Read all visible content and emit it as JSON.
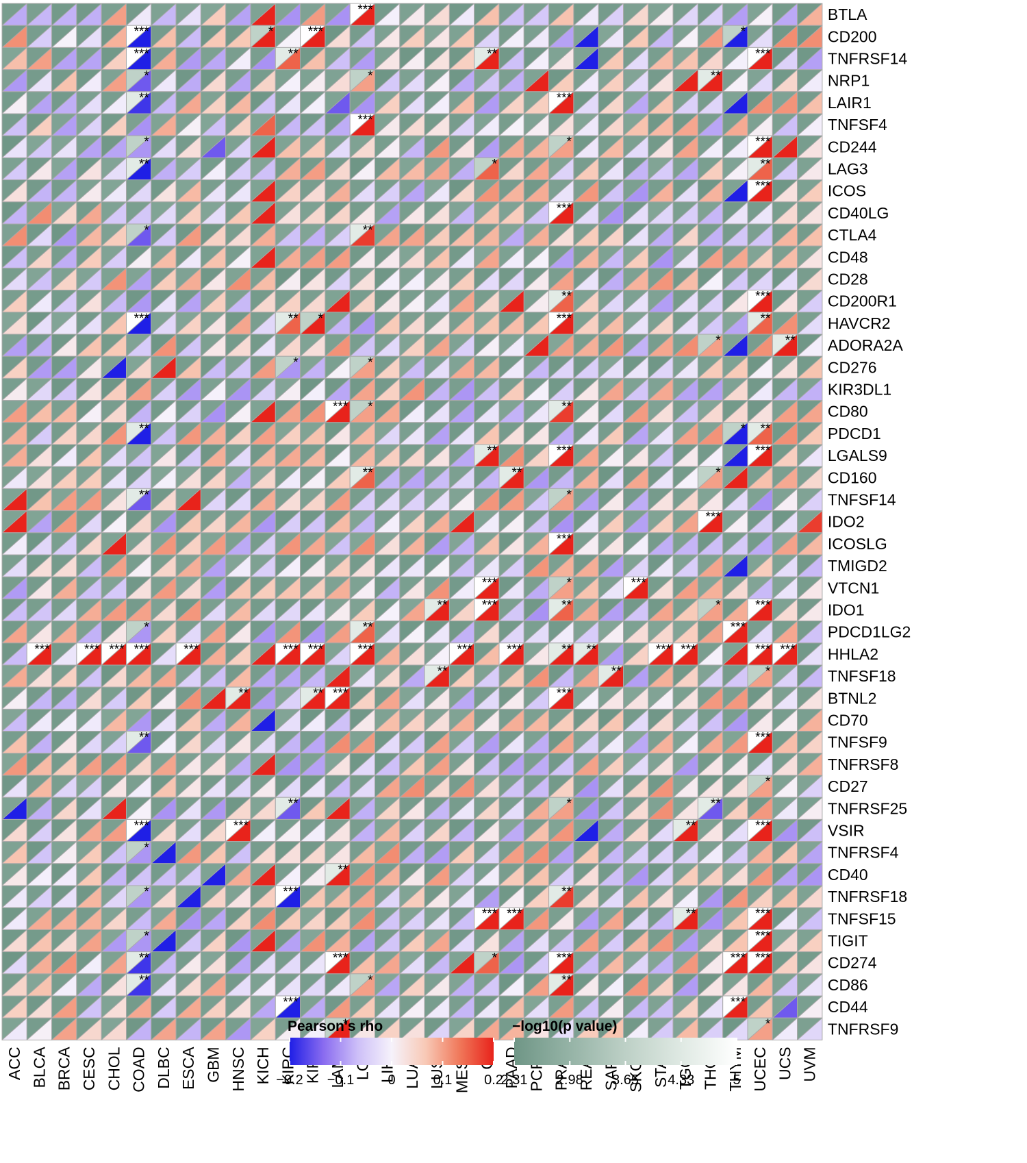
{
  "chart_data": {
    "type": "heatmap",
    "cancers": [
      "ACC",
      "BLCA",
      "BRCA",
      "CESC",
      "CHOL",
      "COAD",
      "DLBC",
      "ESCA",
      "GBM",
      "HNSC",
      "KICH",
      "KIRC",
      "KIRP",
      "LAML",
      "LGG",
      "LIHC",
      "LUAD",
      "LUSC",
      "MESO",
      "OV",
      "PAAD",
      "PCPG",
      "PRAD",
      "READ",
      "SARC",
      "SKCM",
      "STAD",
      "TGCT",
      "THCA",
      "THYM",
      "UCEC",
      "UCS",
      "UVM"
    ],
    "genes": [
      "BTLA",
      "CD200",
      "TNFRSF14",
      "NRP1",
      "LAIR1",
      "TNFSF4",
      "CD244",
      "LAG3",
      "ICOS",
      "CD40LG",
      "CTLA4",
      "CD48",
      "CD28",
      "CD200R1",
      "HAVCR2",
      "ADORA2A",
      "CD276",
      "KIR3DL1",
      "CD80",
      "PDCD1",
      "LGALS9",
      "CD160",
      "TNFSF14",
      "IDO2",
      "ICOSLG",
      "TMIGD2",
      "VTCN1",
      "IDO1",
      "PDCD1LG2",
      "HHLA2",
      "TNFSF18",
      "BTNL2",
      "CD70",
      "TNFSF9",
      "TNFRSF8",
      "CD27",
      "TNFRSF25",
      "VSIR",
      "TNFRSF4",
      "CD40",
      "TNFRSF18",
      "TNFSF15",
      "TIGIT",
      "CD274",
      "CD86",
      "CD44",
      "TNFRSF9"
    ],
    "rho_colors": [
      "#1f1fe6",
      "#8a6cf0",
      "#cdbff8",
      "#f6f2fb",
      "#f8c9b6",
      "#f0785a",
      "#e8231b"
    ],
    "p_colors": [
      "#6f9686",
      "#95b3a6",
      "#bdd0c6",
      "#dfe9e3",
      "#ffffff"
    ],
    "strong": [
      {
        "gene": "BTLA",
        "cancer": "KICH",
        "rho": 0.2
      },
      {
        "gene": "BTLA",
        "cancer": "LGG",
        "rho": 0.2,
        "sig": "***"
      },
      {
        "gene": "CD200",
        "cancer": "COAD",
        "rho": -0.2,
        "sig": "***"
      },
      {
        "gene": "CD200",
        "cancer": "KICH",
        "rho": 0.2,
        "sig": "*"
      },
      {
        "gene": "CD200",
        "cancer": "KIRP",
        "rho": 0.2,
        "sig": "***"
      },
      {
        "gene": "CD200",
        "cancer": "READ",
        "rho": -0.2
      },
      {
        "gene": "CD200",
        "cancer": "THYM",
        "rho": -0.2,
        "sig": "*"
      },
      {
        "gene": "TNFRSF14",
        "cancer": "COAD",
        "rho": -0.2,
        "sig": "***"
      },
      {
        "gene": "TNFRSF14",
        "cancer": "KIRC",
        "rho": 0.15,
        "sig": "**"
      },
      {
        "gene": "TNFRSF14",
        "cancer": "OV",
        "rho": 0.2,
        "sig": "**"
      },
      {
        "gene": "TNFRSF14",
        "cancer": "READ",
        "rho": -0.2
      },
      {
        "gene": "TNFRSF14",
        "cancer": "UCEC",
        "rho": 0.2,
        "sig": "***"
      },
      {
        "gene": "NRP1",
        "cancer": "COAD",
        "rho": -0.15,
        "sig": "*"
      },
      {
        "gene": "NRP1",
        "cancer": "LGG",
        "rho": 0.1,
        "sig": "*"
      },
      {
        "gene": "NRP1",
        "cancer": "PCPG",
        "rho": 0.2
      },
      {
        "gene": "NRP1",
        "cancer": "TGCT",
        "rho": 0.2
      },
      {
        "gene": "NRP1",
        "cancer": "THCA",
        "rho": 0.2,
        "sig": "**"
      },
      {
        "gene": "LAIR1",
        "cancer": "COAD",
        "rho": -0.18,
        "sig": "**"
      },
      {
        "gene": "LAIR1",
        "cancer": "LAML",
        "rho": -0.15
      },
      {
        "gene": "LAIR1",
        "cancer": "PRAD",
        "rho": 0.2,
        "sig": "***"
      },
      {
        "gene": "LAIR1",
        "cancer": "THYM",
        "rho": -0.2
      },
      {
        "gene": "TNFSF4",
        "cancer": "KICH",
        "rho": 0.15
      },
      {
        "gene": "TNFSF4",
        "cancer": "LGG",
        "rho": 0.2,
        "sig": "***"
      },
      {
        "gene": "CD244",
        "cancer": "COAD",
        "rho": -0.1,
        "sig": "*"
      },
      {
        "gene": "CD244",
        "cancer": "GBM",
        "rho": -0.15
      },
      {
        "gene": "CD244",
        "cancer": "KICH",
        "rho": 0.2
      },
      {
        "gene": "CD244",
        "cancer": "PRAD",
        "rho": 0.1,
        "sig": "*"
      },
      {
        "gene": "CD244",
        "cancer": "UCEC",
        "rho": 0.2,
        "sig": "***"
      },
      {
        "gene": "CD244",
        "cancer": "UCS",
        "rho": 0.2
      },
      {
        "gene": "LAG3",
        "cancer": "COAD",
        "rho": -0.2,
        "sig": "**"
      },
      {
        "gene": "LAG3",
        "cancer": "OV",
        "rho": 0.15,
        "sig": "*"
      },
      {
        "gene": "LAG3",
        "cancer": "UCEC",
        "rho": 0.15,
        "sig": "**"
      },
      {
        "gene": "ICOS",
        "cancer": "KICH",
        "rho": 0.2
      },
      {
        "gene": "ICOS",
        "cancer": "THYM",
        "rho": -0.2
      },
      {
        "gene": "ICOS",
        "cancer": "UCEC",
        "rho": 0.2,
        "sig": "***"
      },
      {
        "gene": "CD40LG",
        "cancer": "KICH",
        "rho": 0.2
      },
      {
        "gene": "CD40LG",
        "cancer": "PRAD",
        "rho": 0.2,
        "sig": "***"
      },
      {
        "gene": "CTLA4",
        "cancer": "COAD",
        "rho": -0.15,
        "sig": "*"
      },
      {
        "gene": "CTLA4",
        "cancer": "LGG",
        "rho": 0.18,
        "sig": "**"
      },
      {
        "gene": "CD48",
        "cancer": "KICH",
        "rho": 0.2
      },
      {
        "gene": "CD200R1",
        "cancer": "LAML",
        "rho": 0.2
      },
      {
        "gene": "CD200R1",
        "cancer": "PAAD",
        "rho": 0.2
      },
      {
        "gene": "CD200R1",
        "cancer": "PRAD",
        "rho": 0.15,
        "sig": "**"
      },
      {
        "gene": "CD200R1",
        "cancer": "UCEC",
        "rho": 0.2,
        "sig": "***"
      },
      {
        "gene": "HAVCR2",
        "cancer": "COAD",
        "rho": -0.2,
        "sig": "***"
      },
      {
        "gene": "HAVCR2",
        "cancer": "KIRC",
        "rho": 0.15,
        "sig": "**"
      },
      {
        "gene": "HAVCR2",
        "cancer": "KIRP",
        "rho": 0.2,
        "sig": "*"
      },
      {
        "gene": "HAVCR2",
        "cancer": "PRAD",
        "rho": 0.2,
        "sig": "***"
      },
      {
        "gene": "HAVCR2",
        "cancer": "UCEC",
        "rho": 0.15,
        "sig": "**"
      },
      {
        "gene": "ADORA2A",
        "cancer": "PCPG",
        "rho": 0.2
      },
      {
        "gene": "ADORA2A",
        "cancer": "THCA",
        "rho": 0.1,
        "sig": "*"
      },
      {
        "gene": "ADORA2A",
        "cancer": "THYM",
        "rho": -0.2
      },
      {
        "gene": "ADORA2A",
        "cancer": "UCS",
        "rho": 0.2,
        "sig": "**"
      },
      {
        "gene": "CD276",
        "cancer": "CHOL",
        "rho": -0.2
      },
      {
        "gene": "CD276",
        "cancer": "DLBC",
        "rho": 0.2
      },
      {
        "gene": "CD276",
        "cancer": "KIRC",
        "rho": -0.1,
        "sig": "*"
      },
      {
        "gene": "CD276",
        "cancer": "LGG",
        "rho": 0.1,
        "sig": "*"
      },
      {
        "gene": "CD80",
        "cancer": "KICH",
        "rho": 0.2
      },
      {
        "gene": "CD80",
        "cancer": "LAML",
        "rho": 0.2,
        "sig": "***"
      },
      {
        "gene": "CD80",
        "cancer": "LGG",
        "rho": 0.1,
        "sig": "*"
      },
      {
        "gene": "CD80",
        "cancer": "PRAD",
        "rho": 0.18,
        "sig": "**"
      },
      {
        "gene": "PDCD1",
        "cancer": "COAD",
        "rho": -0.2,
        "sig": "**"
      },
      {
        "gene": "PDCD1",
        "cancer": "THYM",
        "rho": -0.2,
        "sig": "*"
      },
      {
        "gene": "PDCD1",
        "cancer": "UCEC",
        "rho": 0.15,
        "sig": "**"
      },
      {
        "gene": "LGALS9",
        "cancer": "OV",
        "rho": 0.2,
        "sig": "**"
      },
      {
        "gene": "LGALS9",
        "cancer": "PRAD",
        "rho": 0.2,
        "sig": "***"
      },
      {
        "gene": "LGALS9",
        "cancer": "THYM",
        "rho": -0.2
      },
      {
        "gene": "LGALS9",
        "cancer": "UCEC",
        "rho": 0.2,
        "sig": "***"
      },
      {
        "gene": "CD160",
        "cancer": "LGG",
        "rho": 0.15,
        "sig": "**"
      },
      {
        "gene": "CD160",
        "cancer": "PAAD",
        "rho": 0.2,
        "sig": "**"
      },
      {
        "gene": "CD160",
        "cancer": "THCA",
        "rho": 0.1,
        "sig": "*"
      },
      {
        "gene": "CD160",
        "cancer": "THYM",
        "rho": 0.2
      },
      {
        "gene": "TNFSF14",
        "cancer": "ACC",
        "rho": 0.2
      },
      {
        "gene": "TNFSF14",
        "cancer": "COAD",
        "rho": -0.15,
        "sig": "**"
      },
      {
        "gene": "TNFSF14",
        "cancer": "ESCA",
        "rho": 0.2
      },
      {
        "gene": "TNFSF14",
        "cancer": "PRAD",
        "rho": 0.1,
        "sig": "*"
      },
      {
        "gene": "IDO2",
        "cancer": "ACC",
        "rho": 0.2
      },
      {
        "gene": "IDO2",
        "cancer": "MESO",
        "rho": 0.2
      },
      {
        "gene": "IDO2",
        "cancer": "THCA",
        "rho": 0.2,
        "sig": "***"
      },
      {
        "gene": "IDO2",
        "cancer": "UVM",
        "rho": 0.18
      },
      {
        "gene": "ICOSLG",
        "cancer": "CHOL",
        "rho": 0.2
      },
      {
        "gene": "ICOSLG",
        "cancer": "PRAD",
        "rho": 0.2,
        "sig": "***"
      },
      {
        "gene": "TMIGD2",
        "cancer": "THYM",
        "rho": -0.2
      },
      {
        "gene": "VTCN1",
        "cancer": "OV",
        "rho": 0.2,
        "sig": "***"
      },
      {
        "gene": "VTCN1",
        "cancer": "PRAD",
        "rho": 0.1,
        "sig": "*"
      },
      {
        "gene": "VTCN1",
        "cancer": "SKCM",
        "rho": 0.2,
        "sig": "***"
      },
      {
        "gene": "IDO1",
        "cancer": "LUSC",
        "rho": 0.2,
        "sig": "**"
      },
      {
        "gene": "IDO1",
        "cancer": "OV",
        "rho": 0.2,
        "sig": "***"
      },
      {
        "gene": "IDO1",
        "cancer": "PRAD",
        "rho": 0.15,
        "sig": "**"
      },
      {
        "gene": "IDO1",
        "cancer": "THCA",
        "rho": 0.1,
        "sig": "*"
      },
      {
        "gene": "IDO1",
        "cancer": "UCEC",
        "rho": 0.2,
        "sig": "***"
      },
      {
        "gene": "PDCD1LG2",
        "cancer": "COAD",
        "rho": -0.1,
        "sig": "*"
      },
      {
        "gene": "PDCD1LG2",
        "cancer": "LGG",
        "rho": 0.15,
        "sig": "**"
      },
      {
        "gene": "PDCD1LG2",
        "cancer": "THYM",
        "rho": 0.2,
        "sig": "***"
      },
      {
        "gene": "HHLA2",
        "cancer": "BLCA",
        "rho": 0.2,
        "sig": "***"
      },
      {
        "gene": "HHLA2",
        "cancer": "CESC",
        "rho": 0.2,
        "sig": "***"
      },
      {
        "gene": "HHLA2",
        "cancer": "CHOL",
        "rho": 0.2,
        "sig": "***"
      },
      {
        "gene": "HHLA2",
        "cancer": "COAD",
        "rho": 0.2,
        "sig": "***"
      },
      {
        "gene": "HHLA2",
        "cancer": "ESCA",
        "rho": 0.2,
        "sig": "***"
      },
      {
        "gene": "HHLA2",
        "cancer": "KICH",
        "rho": 0.2
      },
      {
        "gene": "HHLA2",
        "cancer": "KIRC",
        "rho": 0.2,
        "sig": "***"
      },
      {
        "gene": "HHLA2",
        "cancer": "KIRP",
        "rho": 0.2,
        "sig": "***"
      },
      {
        "gene": "HHLA2",
        "cancer": "LGG",
        "rho": 0.2,
        "sig": "***"
      },
      {
        "gene": "HHLA2",
        "cancer": "MESO",
        "rho": 0.2,
        "sig": "***"
      },
      {
        "gene": "HHLA2",
        "cancer": "PAAD",
        "rho": 0.2,
        "sig": "***"
      },
      {
        "gene": "HHLA2",
        "cancer": "PRAD",
        "rho": 0.2,
        "sig": "**"
      },
      {
        "gene": "HHLA2",
        "cancer": "READ",
        "rho": 0.2,
        "sig": "**"
      },
      {
        "gene": "HHLA2",
        "cancer": "STAD",
        "rho": 0.2,
        "sig": "***"
      },
      {
        "gene": "HHLA2",
        "cancer": "TGCT",
        "rho": 0.2,
        "sig": "***"
      },
      {
        "gene": "HHLA2",
        "cancer": "THYM",
        "rho": 0.2
      },
      {
        "gene": "HHLA2",
        "cancer": "UCEC",
        "rho": 0.2,
        "sig": "***"
      },
      {
        "gene": "HHLA2",
        "cancer": "UCS",
        "rho": 0.2,
        "sig": "***"
      },
      {
        "gene": "TNFSF18",
        "cancer": "LAML",
        "rho": 0.2
      },
      {
        "gene": "TNFSF18",
        "cancer": "LUSC",
        "rho": 0.2,
        "sig": "**"
      },
      {
        "gene": "TNFSF18",
        "cancer": "SARC",
        "rho": 0.2,
        "sig": "**"
      },
      {
        "gene": "TNFSF18",
        "cancer": "UCEC",
        "rho": 0.1,
        "sig": "*"
      },
      {
        "gene": "BTNL2",
        "cancer": "GBM",
        "rho": 0.2
      },
      {
        "gene": "BTNL2",
        "cancer": "HNSC",
        "rho": 0.2,
        "sig": "**"
      },
      {
        "gene": "BTNL2",
        "cancer": "KIRP",
        "rho": 0.2,
        "sig": "**"
      },
      {
        "gene": "BTNL2",
        "cancer": "LAML",
        "rho": 0.2,
        "sig": "***"
      },
      {
        "gene": "BTNL2",
        "cancer": "PRAD",
        "rho": 0.2,
        "sig": "***"
      },
      {
        "gene": "CD70",
        "cancer": "KICH",
        "rho": -0.2
      },
      {
        "gene": "TNFSF9",
        "cancer": "COAD",
        "rho": -0.15,
        "sig": "**"
      },
      {
        "gene": "TNFSF9",
        "cancer": "UCEC",
        "rho": 0.2,
        "sig": "***"
      },
      {
        "gene": "TNFRSF8",
        "cancer": "KICH",
        "rho": 0.2
      },
      {
        "gene": "CD27",
        "cancer": "UCEC",
        "rho": 0.1,
        "sig": "*"
      },
      {
        "gene": "TNFRSF25",
        "cancer": "ACC",
        "rho": -0.2
      },
      {
        "gene": "TNFRSF25",
        "cancer": "CHOL",
        "rho": 0.2
      },
      {
        "gene": "TNFRSF25",
        "cancer": "KIRC",
        "rho": -0.15,
        "sig": "**"
      },
      {
        "gene": "TNFRSF25",
        "cancer": "LAML",
        "rho": 0.2
      },
      {
        "gene": "TNFRSF25",
        "cancer": "PRAD",
        "rho": 0.1,
        "sig": "*"
      },
      {
        "gene": "TNFRSF25",
        "cancer": "THCA",
        "rho": -0.15,
        "sig": "**"
      },
      {
        "gene": "VSIR",
        "cancer": "COAD",
        "rho": -0.2,
        "sig": "***"
      },
      {
        "gene": "VSIR",
        "cancer": "HNSC",
        "rho": 0.2,
        "sig": "***"
      },
      {
        "gene": "VSIR",
        "cancer": "READ",
        "rho": -0.2
      },
      {
        "gene": "VSIR",
        "cancer": "TGCT",
        "rho": 0.2,
        "sig": "**"
      },
      {
        "gene": "VSIR",
        "cancer": "UCEC",
        "rho": 0.2,
        "sig": "***"
      },
      {
        "gene": "TNFRSF4",
        "cancer": "COAD",
        "rho": -0.1,
        "sig": "*"
      },
      {
        "gene": "TNFRSF4",
        "cancer": "DLBC",
        "rho": -0.2
      },
      {
        "gene": "CD40",
        "cancer": "GBM",
        "rho": -0.2
      },
      {
        "gene": "CD40",
        "cancer": "KICH",
        "rho": 0.2
      },
      {
        "gene": "CD40",
        "cancer": "LAML",
        "rho": 0.2,
        "sig": "**"
      },
      {
        "gene": "TNFRSF18",
        "cancer": "COAD",
        "rho": -0.1,
        "sig": "*"
      },
      {
        "gene": "TNFRSF18",
        "cancer": "ESCA",
        "rho": -0.2
      },
      {
        "gene": "TNFRSF18",
        "cancer": "KIRC",
        "rho": -0.2,
        "sig": "***"
      },
      {
        "gene": "TNFRSF18",
        "cancer": "PRAD",
        "rho": 0.18,
        "sig": "**"
      },
      {
        "gene": "TNFSF15",
        "cancer": "OV",
        "rho": 0.2,
        "sig": "***"
      },
      {
        "gene": "TNFSF15",
        "cancer": "PAAD",
        "rho": 0.2,
        "sig": "***"
      },
      {
        "gene": "TNFSF15",
        "cancer": "TGCT",
        "rho": 0.2,
        "sig": "**"
      },
      {
        "gene": "TNFSF15",
        "cancer": "UCEC",
        "rho": 0.2,
        "sig": "***"
      },
      {
        "gene": "TIGIT",
        "cancer": "COAD",
        "rho": -0.1,
        "sig": "*"
      },
      {
        "gene": "TIGIT",
        "cancer": "DLBC",
        "rho": -0.2
      },
      {
        "gene": "TIGIT",
        "cancer": "KICH",
        "rho": 0.2
      },
      {
        "gene": "TIGIT",
        "cancer": "UCEC",
        "rho": 0.2,
        "sig": "***"
      },
      {
        "gene": "CD274",
        "cancer": "COAD",
        "rho": -0.18,
        "sig": "**"
      },
      {
        "gene": "CD274",
        "cancer": "LAML",
        "rho": 0.2,
        "sig": "***"
      },
      {
        "gene": "CD274",
        "cancer": "MESO",
        "rho": 0.2
      },
      {
        "gene": "CD274",
        "cancer": "OV",
        "rho": 0.15,
        "sig": "*"
      },
      {
        "gene": "CD274",
        "cancer": "PRAD",
        "rho": 0.2,
        "sig": "***"
      },
      {
        "gene": "CD274",
        "cancer": "THYM",
        "rho": 0.2,
        "sig": "***"
      },
      {
        "gene": "CD274",
        "cancer": "UCEC",
        "rho": 0.2,
        "sig": "***"
      },
      {
        "gene": "CD86",
        "cancer": "COAD",
        "rho": -0.18,
        "sig": "**"
      },
      {
        "gene": "CD86",
        "cancer": "LGG",
        "rho": 0.1,
        "sig": "*"
      },
      {
        "gene": "CD86",
        "cancer": "PRAD",
        "rho": 0.2,
        "sig": "**"
      },
      {
        "gene": "CD44",
        "cancer": "KIRC",
        "rho": -0.2,
        "sig": "***"
      },
      {
        "gene": "CD44",
        "cancer": "THYM",
        "rho": 0.2,
        "sig": "***"
      },
      {
        "gene": "CD44",
        "cancer": "UCS",
        "rho": -0.15
      },
      {
        "gene": "TNFRSF9",
        "cancer": "LAML",
        "rho": 0.2,
        "sig": "*"
      },
      {
        "gene": "TNFRSF9",
        "cancer": "UCEC",
        "rho": 0.1,
        "sig": "*"
      }
    ],
    "legend_rho": {
      "title": "Pearson's rho",
      "ticks": [
        "−0.2",
        "−0.1",
        "0",
        "0.1",
        "0.2"
      ],
      "range": [
        -0.2,
        0.2
      ]
    },
    "legend_p": {
      "title": "−log10(p value)",
      "ticks": [
        "2.31",
        "2.98",
        "3.65",
        "4.33",
        "5"
      ],
      "range": [
        2.31,
        5
      ]
    }
  }
}
